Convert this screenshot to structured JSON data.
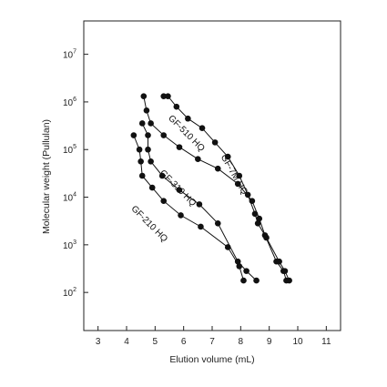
{
  "chart_data": {
    "type": "scatter",
    "title": "",
    "xlabel": "Elution volume (mL)",
    "ylabel": "Molecular weight (Pullulan)",
    "xlim": [
      2.5,
      11.5
    ],
    "ylim": [
      1.2,
      7.7
    ],
    "yscale": "log",
    "grid": false,
    "legend": "none",
    "x_ticks": [
      "3",
      "4",
      "5",
      "6",
      "7",
      "8",
      "9",
      "10",
      "11"
    ],
    "x_tick_values": [
      3,
      4,
      5,
      6,
      7,
      8,
      9,
      10,
      11
    ],
    "y_ticks": [
      {
        "base": "10",
        "exp": "2",
        "value": 2
      },
      {
        "base": "10",
        "exp": "3",
        "value": 3
      },
      {
        "base": "10",
        "exp": "4",
        "value": 4
      },
      {
        "base": "10",
        "exp": "5",
        "value": 5
      },
      {
        "base": "10",
        "exp": "6",
        "value": 6
      },
      {
        "base": "10",
        "exp": "7",
        "value": 7
      }
    ],
    "marker_color": "#111111",
    "line_color": "#111111",
    "series": [
      {
        "name": "GF-210 HQ",
        "label_rotation": 45,
        "label_at": [
          4.15,
          3.75
        ],
        "x": [
          4.25,
          4.45,
          4.5,
          4.55,
          4.9,
          5.3,
          5.9,
          6.6,
          7.55,
          7.95,
          8.1
        ],
        "y": [
          5.3,
          5.0,
          4.75,
          4.45,
          4.2,
          3.92,
          3.62,
          3.38,
          2.95,
          2.55,
          2.25
        ]
      },
      {
        "name": "GF-310 HQ",
        "label_rotation": 45,
        "label_at": [
          5.15,
          4.5
        ],
        "x": [
          4.55,
          4.75,
          4.75,
          4.85,
          5.25,
          5.85,
          6.55,
          7.2,
          7.9,
          8.2,
          8.55
        ],
        "y": [
          5.55,
          5.3,
          5.0,
          4.75,
          4.45,
          4.15,
          3.85,
          3.45,
          2.65,
          2.45,
          2.25
        ]
      },
      {
        "name": "GF-510 HQ",
        "label_rotation": 45,
        "label_at": [
          5.45,
          5.65
        ],
        "x": [
          4.6,
          4.7,
          4.85,
          5.3,
          5.85,
          6.5,
          7.2,
          7.9,
          8.4,
          8.65,
          8.85,
          9.25,
          9.5,
          9.6
        ],
        "y": [
          6.12,
          5.82,
          5.55,
          5.3,
          5.05,
          4.8,
          4.6,
          4.28,
          3.92,
          3.55,
          3.2,
          2.65,
          2.45,
          2.25
        ]
      },
      {
        "name": "GF-7M HQ",
        "label_rotation": 60,
        "label_at": [
          7.3,
          4.85
        ],
        "x": [
          5.3,
          5.45,
          5.75,
          6.15,
          6.65,
          7.1,
          7.55,
          7.95,
          8.25,
          8.5,
          8.6,
          8.9,
          9.35,
          9.55,
          9.7
        ],
        "y": [
          6.12,
          6.12,
          5.9,
          5.65,
          5.45,
          5.15,
          4.85,
          4.45,
          4.05,
          3.65,
          3.45,
          3.15,
          2.65,
          2.45,
          2.25
        ]
      }
    ]
  }
}
